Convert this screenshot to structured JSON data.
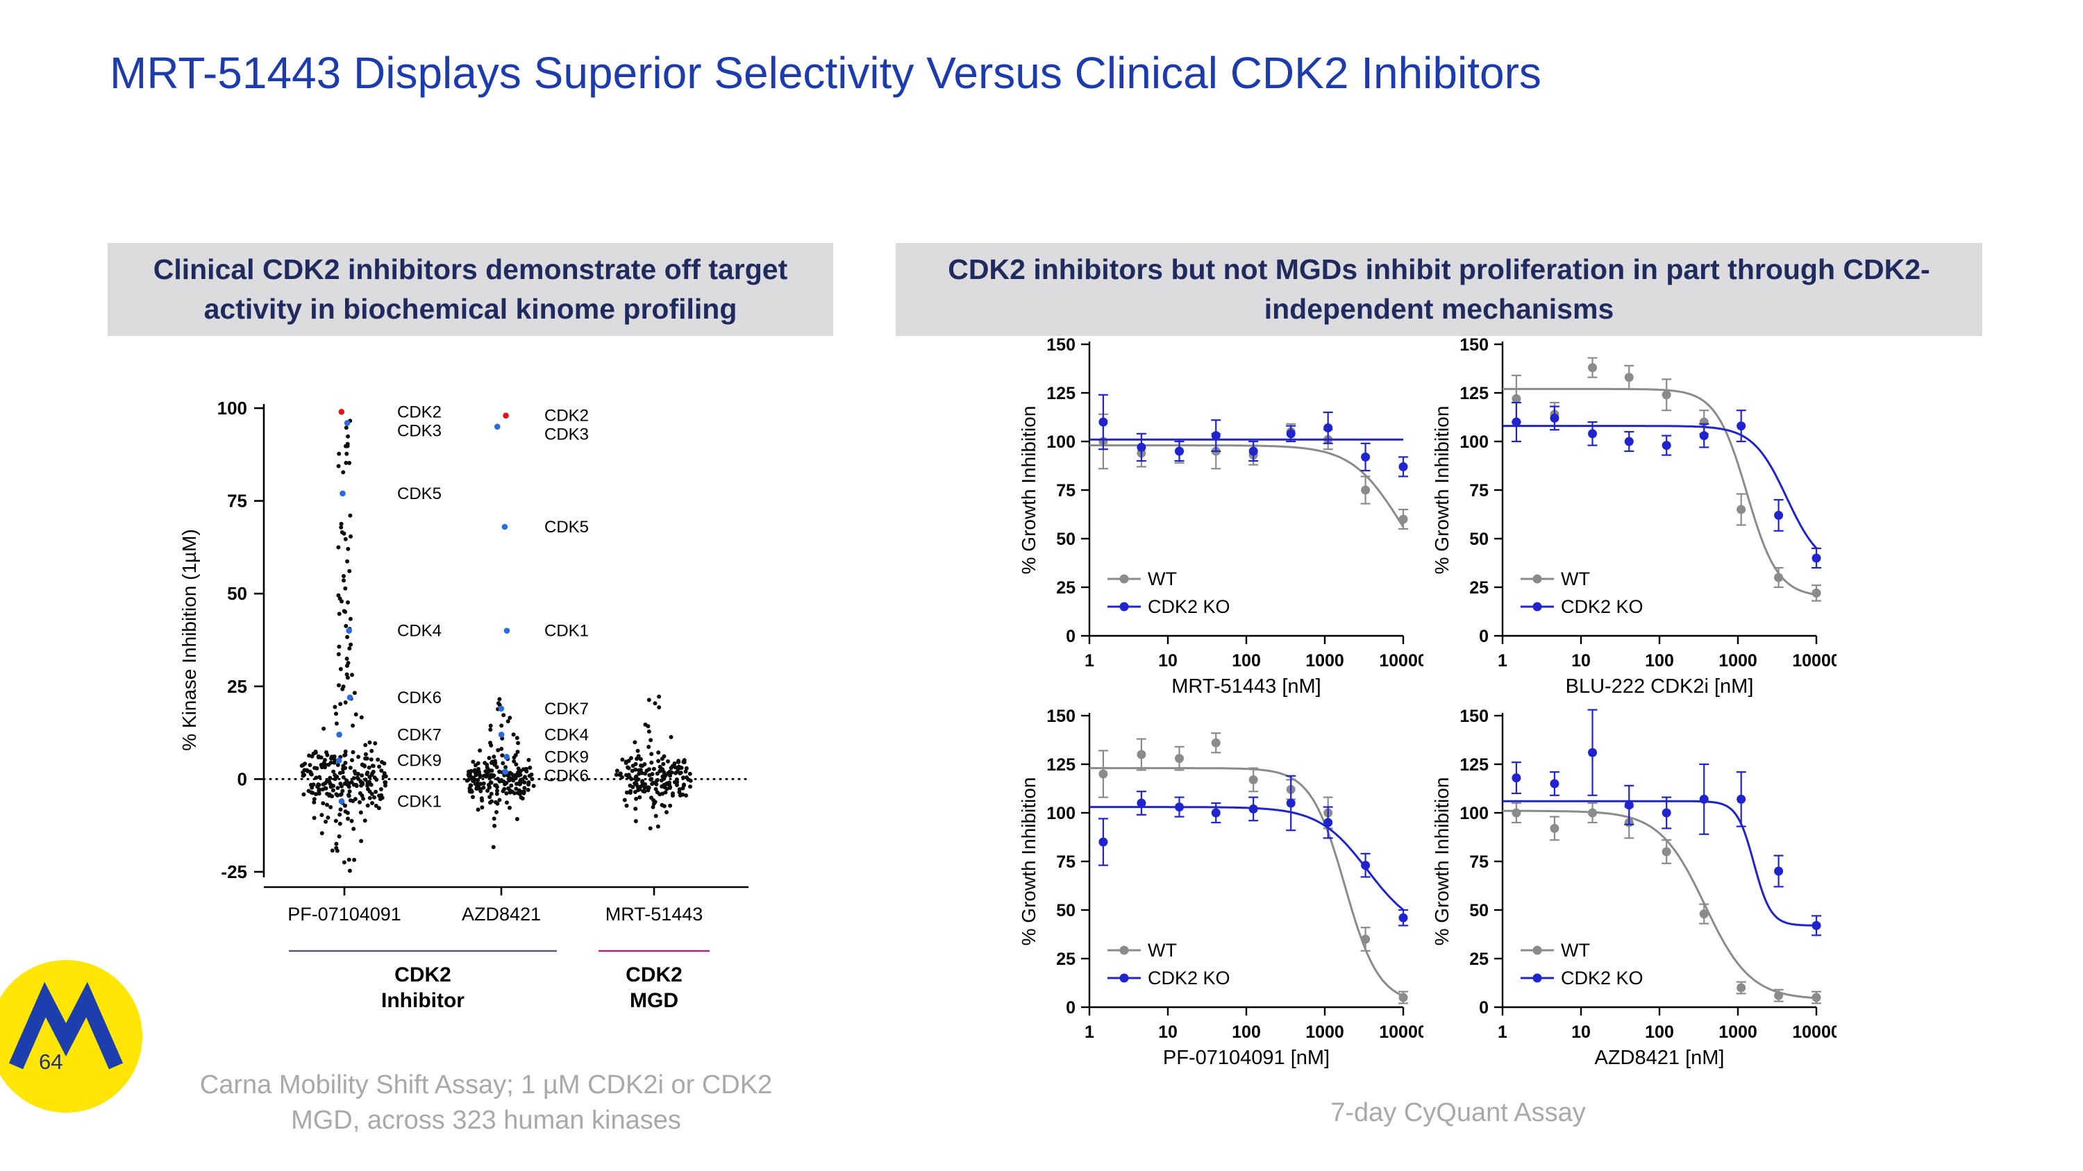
{
  "slide": {
    "title": "MRT-51443 Displays Superior Selectivity Versus Clinical CDK2 Inhibitors",
    "page_number": "64",
    "left_panel": {
      "header": "Clinical CDK2 inhibitors demonstrate off target activity in biochemical kinome profiling",
      "footnote": "Carna Mobility Shift Assay; 1 µM CDK2i or CDK2 MGD, across 323 human kinases"
    },
    "right_panel": {
      "header": "CDK2 inhibitors but not MGDs inhibit proliferation in part through CDK2-independent mechanisms",
      "footnote": "7-day CyQuant Assay"
    }
  },
  "colors": {
    "title_blue": "#1c3bac",
    "header_bg": "#dcdcde",
    "header_text": "#1f2a5e",
    "wt_gray": "#8b8b8b",
    "ko_blue": "#1f24cf",
    "cdk2_red": "#e0161b",
    "cdk_label_blue": "#2a6be0",
    "mgd_magenta": "#b0276f",
    "inhibitor_gray": "#565b6e",
    "logo_yellow": "#ffe606",
    "logo_blue": "#1d3fae"
  },
  "chart_data": [
    {
      "id": "kinome-selectivity",
      "type": "scatter",
      "title": "",
      "ylabel": "% Kinase Inhibition (1µM)",
      "ylim": [
        -25,
        100
      ],
      "yticks": [
        -25,
        0,
        25,
        50,
        75,
        100
      ],
      "categories": [
        "PF-07104091",
        "AZD8421",
        "MRT-51443"
      ],
      "zero_line": true,
      "point_color": "#0c0c0c",
      "highlights": [
        {
          "category": "PF-07104091",
          "kinase": "CDK2",
          "value": 99,
          "color": "#e0161b"
        },
        {
          "category": "PF-07104091",
          "kinase": "CDK3",
          "value": 96,
          "color": "#2a6be0"
        },
        {
          "category": "PF-07104091",
          "kinase": "CDK5",
          "value": 77,
          "color": "#2a6be0"
        },
        {
          "category": "PF-07104091",
          "kinase": "CDK4",
          "value": 40,
          "color": "#2a6be0"
        },
        {
          "category": "PF-07104091",
          "kinase": "CDK6",
          "value": 22,
          "color": "#2a6be0"
        },
        {
          "category": "PF-07104091",
          "kinase": "CDK7",
          "value": 12,
          "color": "#2a6be0"
        },
        {
          "category": "PF-07104091",
          "kinase": "CDK9",
          "value": 5,
          "color": "#2a6be0"
        },
        {
          "category": "PF-07104091",
          "kinase": "CDK1",
          "value": -6,
          "color": "#2a6be0"
        },
        {
          "category": "AZD8421",
          "kinase": "CDK2",
          "value": 98,
          "color": "#e0161b"
        },
        {
          "category": "AZD8421",
          "kinase": "CDK3",
          "value": 95,
          "color": "#2a6be0"
        },
        {
          "category": "AZD8421",
          "kinase": "CDK5",
          "value": 68,
          "color": "#2a6be0"
        },
        {
          "category": "AZD8421",
          "kinase": "CDK1",
          "value": 40,
          "color": "#2a6be0"
        },
        {
          "category": "AZD8421",
          "kinase": "CDK7",
          "value": 19,
          "color": "#2a6be0"
        },
        {
          "category": "AZD8421",
          "kinase": "CDK4",
          "value": 12,
          "color": "#2a6be0"
        },
        {
          "category": "AZD8421",
          "kinase": "CDK9",
          "value": 6,
          "color": "#2a6be0"
        },
        {
          "category": "AZD8421",
          "kinase": "CDK6",
          "value": 2,
          "color": "#2a6be0"
        }
      ],
      "swarm": [
        {
          "category": "PF-07104091",
          "n_core": 210,
          "core_sd": 5,
          "extra_values": [
            97,
            94,
            92,
            91,
            90,
            89,
            88,
            87,
            86,
            85,
            84,
            83,
            71,
            69,
            68,
            67,
            66,
            65,
            64,
            63,
            62,
            58,
            56,
            55,
            53,
            52,
            50,
            49,
            48,
            47,
            46,
            45,
            44,
            43,
            42,
            41,
            38,
            37,
            36,
            35,
            34,
            33,
            32,
            31,
            30,
            29,
            28,
            27,
            26,
            25,
            24,
            23,
            22,
            21,
            20,
            19,
            18,
            17,
            16,
            15,
            14,
            13,
            -10,
            -11,
            -12,
            -13,
            -14,
            -15,
            -16,
            -17,
            -18,
            -19,
            -20,
            -21,
            -22,
            -23,
            -24
          ]
        },
        {
          "category": "AZD8421",
          "n_core": 175,
          "core_sd": 3.8,
          "extra_values": [
            22,
            21,
            20,
            19,
            18,
            17,
            16,
            15,
            14,
            13,
            12,
            11,
            10,
            9,
            8,
            -9,
            -10,
            -11,
            -12,
            -19
          ]
        },
        {
          "category": "MRT-51443",
          "n_core": 165,
          "core_sd": 3.8,
          "extra_values": [
            23,
            22,
            21,
            20,
            15,
            14,
            13,
            12,
            11,
            10,
            9,
            8,
            -9,
            -10,
            -11,
            -12,
            -13
          ]
        }
      ],
      "groups": [
        {
          "label_lines": [
            "CDK2",
            "Inhibitor"
          ],
          "categories": [
            "PF-07104091",
            "AZD8421"
          ],
          "color": "#565b6e"
        },
        {
          "label_lines": [
            "CDK2",
            "MGD"
          ],
          "categories": [
            "MRT-51443"
          ],
          "color": "#b0276f"
        }
      ]
    },
    {
      "id": "dose-mrt-51443",
      "type": "line",
      "xlabel": "MRT-51443 [nM]",
      "ylabel": "% Growth Inhibition",
      "xscale": "log",
      "xlim": [
        1,
        10000
      ],
      "xticks": [
        1,
        10,
        100,
        1000,
        10000
      ],
      "ylim": [
        0,
        150
      ],
      "yticks": [
        0,
        25,
        50,
        75,
        100,
        125,
        150
      ],
      "doses": [
        1.5,
        4.6,
        14,
        41,
        123,
        370,
        1100,
        3300,
        10000
      ],
      "legend": [
        "WT",
        "CDK2 KO"
      ],
      "series": [
        {
          "name": "WT",
          "color": "#8b8b8b",
          "values": [
            100,
            94,
            95,
            95,
            93,
            105,
            101,
            75,
            60
          ],
          "errors": [
            14,
            7,
            6,
            9,
            5,
            4,
            5,
            7,
            5
          ],
          "fit": {
            "top": 98,
            "bottom": 20,
            "ic50": 9000,
            "hill": 1.4
          }
        },
        {
          "name": "CDK2 KO",
          "color": "#1f24cf",
          "values": [
            110,
            97,
            95,
            103,
            95,
            104,
            107,
            92,
            87
          ],
          "errors": [
            14,
            7,
            5,
            8,
            5,
            4,
            8,
            7,
            5
          ],
          "fit": {
            "top": 101,
            "bottom": 101,
            "ic50": 1000,
            "hill": 1
          }
        }
      ]
    },
    {
      "id": "dose-blu-222",
      "type": "line",
      "xlabel": "BLU-222 CDK2i [nM]",
      "ylabel": "% Growth Inhibition",
      "xscale": "log",
      "xlim": [
        1,
        10000
      ],
      "xticks": [
        1,
        10,
        100,
        1000,
        10000
      ],
      "ylim": [
        0,
        150
      ],
      "yticks": [
        0,
        25,
        50,
        75,
        100,
        125,
        150
      ],
      "doses": [
        1.5,
        4.6,
        14,
        41,
        123,
        370,
        1100,
        3300,
        10000
      ],
      "legend": [
        "WT",
        "CDK2 KO"
      ],
      "series": [
        {
          "name": "WT",
          "color": "#8b8b8b",
          "values": [
            122,
            114,
            138,
            133,
            124,
            110,
            65,
            30,
            22
          ],
          "errors": [
            12,
            6,
            5,
            6,
            8,
            6,
            8,
            5,
            4
          ],
          "fit": {
            "top": 127,
            "bottom": 20,
            "ic50": 1300,
            "hill": 2.2
          }
        },
        {
          "name": "CDK2 KO",
          "color": "#1f24cf",
          "values": [
            110,
            112,
            104,
            100,
            98,
            103,
            108,
            62,
            40
          ],
          "errors": [
            10,
            6,
            6,
            5,
            5,
            6,
            8,
            8,
            5
          ],
          "fit": {
            "top": 108,
            "bottom": 34,
            "ic50": 4200,
            "hill": 2
          }
        }
      ]
    },
    {
      "id": "dose-pf-07104091",
      "type": "line",
      "xlabel": "PF-07104091 [nM]",
      "ylabel": "% Growth Inhibition",
      "xscale": "log",
      "xlim": [
        1,
        10000
      ],
      "xticks": [
        1,
        10,
        100,
        1000,
        10000
      ],
      "ylim": [
        0,
        150
      ],
      "yticks": [
        0,
        25,
        50,
        75,
        100,
        125,
        150
      ],
      "doses": [
        1.5,
        4.6,
        14,
        41,
        123,
        370,
        1100,
        3300,
        10000
      ],
      "legend": [
        "WT",
        "CDK2 KO"
      ],
      "series": [
        {
          "name": "WT",
          "color": "#8b8b8b",
          "values": [
            120,
            130,
            128,
            136,
            117,
            112,
            100,
            35,
            5
          ],
          "errors": [
            12,
            8,
            6,
            5,
            6,
            5,
            8,
            6,
            3
          ],
          "fit": {
            "top": 123,
            "bottom": 2,
            "ic50": 1800,
            "hill": 2
          }
        },
        {
          "name": "CDK2 KO",
          "color": "#1f24cf",
          "values": [
            85,
            105,
            103,
            100,
            102,
            105,
            95,
            73,
            46
          ],
          "errors": [
            12,
            6,
            5,
            5,
            6,
            14,
            8,
            6,
            4
          ],
          "fit": {
            "top": 103,
            "bottom": 38,
            "ic50": 3500,
            "hill": 1.4
          }
        }
      ]
    },
    {
      "id": "dose-azd8421",
      "type": "line",
      "xlabel": "AZD8421 [nM]",
      "ylabel": "% Growth Inhibition",
      "xscale": "log",
      "xlim": [
        1,
        10000
      ],
      "xticks": [
        1,
        10,
        100,
        1000,
        10000
      ],
      "ylim": [
        0,
        150
      ],
      "yticks": [
        0,
        25,
        50,
        75,
        100,
        125,
        150
      ],
      "doses": [
        1.5,
        4.6,
        14,
        41,
        123,
        370,
        1100,
        3300,
        10000
      ],
      "legend": [
        "WT",
        "CDK2 KO"
      ],
      "series": [
        {
          "name": "WT",
          "color": "#8b8b8b",
          "values": [
            100,
            92,
            100,
            95,
            80,
            48,
            10,
            6,
            5
          ],
          "errors": [
            5,
            6,
            5,
            8,
            6,
            5,
            3,
            3,
            3
          ],
          "fit": {
            "top": 101,
            "bottom": 4,
            "ic50": 380,
            "hill": 1.5
          }
        },
        {
          "name": "CDK2 KO",
          "color": "#1f24cf",
          "values": [
            118,
            115,
            131,
            104,
            100,
            107,
            107,
            70,
            42
          ],
          "errors": [
            8,
            6,
            22,
            10,
            8,
            18,
            14,
            8,
            5
          ],
          "fit": {
            "top": 106,
            "bottom": 42,
            "ic50": 1600,
            "hill": 4
          }
        }
      ]
    }
  ]
}
